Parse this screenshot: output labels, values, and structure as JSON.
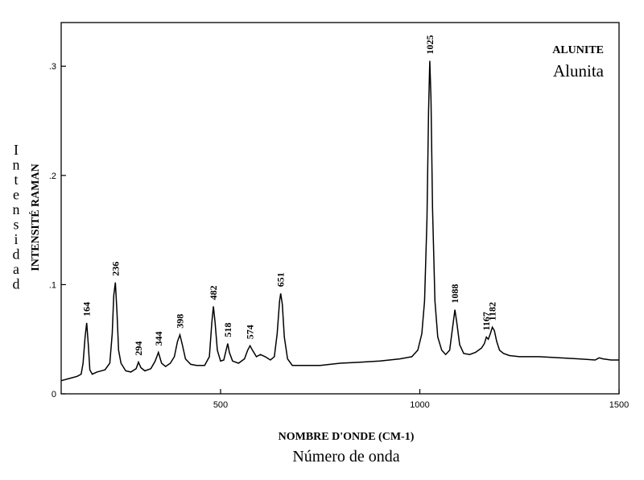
{
  "chart_data": {
    "type": "line",
    "title": "ALUNITE",
    "subtitle": "Alunita",
    "xlabel": "NOMBRE D'ONDE (CM-1)",
    "xlabel_alt": "Número de onda",
    "ylabel": "INTENSITÉ RAMAN",
    "ylabel_alt": "Intensidad",
    "xlim": [
      100,
      1500
    ],
    "ylim": [
      0,
      0.34
    ],
    "x_ticks": [
      500,
      1000,
      1500
    ],
    "y_ticks": [
      {
        "value": 0,
        "label": "0"
      },
      {
        "value": 0.1,
        "label": ".1"
      },
      {
        "value": 0.2,
        "label": ".2"
      },
      {
        "value": 0.3,
        "label": ".3"
      }
    ],
    "grid": false,
    "peaks": [
      {
        "label": "164",
        "x": 164,
        "y": 0.065
      },
      {
        "label": "236",
        "x": 236,
        "y": 0.102
      },
      {
        "label": "294",
        "x": 294,
        "y": 0.029
      },
      {
        "label": "344",
        "x": 344,
        "y": 0.038
      },
      {
        "label": "398",
        "x": 398,
        "y": 0.054
      },
      {
        "label": "482",
        "x": 482,
        "y": 0.08
      },
      {
        "label": "518",
        "x": 518,
        "y": 0.046
      },
      {
        "label": "574",
        "x": 574,
        "y": 0.044
      },
      {
        "label": "651",
        "x": 651,
        "y": 0.092
      },
      {
        "label": "1025",
        "x": 1025,
        "y": 0.305
      },
      {
        "label": "1088",
        "x": 1088,
        "y": 0.077
      },
      {
        "label": "1167",
        "x": 1167,
        "y": 0.052
      },
      {
        "label": "1182",
        "x": 1182,
        "y": 0.061
      }
    ],
    "series": [
      {
        "x": [
          100,
          120,
          140,
          150,
          155,
          160,
          164,
          168,
          172,
          178,
          190,
          210,
          222,
          228,
          232,
          236,
          240,
          244,
          250,
          262,
          275,
          288,
          294,
          300,
          310,
          325,
          336,
          344,
          352,
          362,
          374,
          384,
          392,
          398,
          404,
          412,
          425,
          440,
          460,
          472,
          478,
          482,
          486,
          492,
          500,
          508,
          514,
          518,
          522,
          530,
          545,
          560,
          568,
          574,
          580,
          590,
          600,
          612,
          625,
          635,
          642,
          648,
          651,
          655,
          660,
          668,
          680,
          700,
          750,
          800,
          850,
          900,
          950,
          980,
          995,
          1005,
          1012,
          1018,
          1022,
          1025,
          1028,
          1032,
          1038,
          1045,
          1055,
          1065,
          1075,
          1082,
          1088,
          1093,
          1100,
          1110,
          1125,
          1140,
          1155,
          1162,
          1167,
          1172,
          1177,
          1182,
          1187,
          1193,
          1200,
          1210,
          1225,
          1250,
          1300,
          1350,
          1400,
          1440,
          1450,
          1460,
          1480,
          1500
        ],
        "y": [
          0.012,
          0.014,
          0.016,
          0.018,
          0.028,
          0.052,
          0.065,
          0.045,
          0.022,
          0.018,
          0.02,
          0.022,
          0.028,
          0.055,
          0.09,
          0.102,
          0.075,
          0.04,
          0.028,
          0.021,
          0.02,
          0.023,
          0.029,
          0.024,
          0.021,
          0.023,
          0.03,
          0.038,
          0.028,
          0.025,
          0.028,
          0.034,
          0.048,
          0.054,
          0.045,
          0.032,
          0.027,
          0.026,
          0.026,
          0.034,
          0.065,
          0.08,
          0.066,
          0.04,
          0.03,
          0.031,
          0.04,
          0.046,
          0.038,
          0.03,
          0.028,
          0.032,
          0.04,
          0.044,
          0.04,
          0.034,
          0.036,
          0.034,
          0.031,
          0.034,
          0.055,
          0.085,
          0.092,
          0.082,
          0.052,
          0.032,
          0.026,
          0.026,
          0.026,
          0.028,
          0.029,
          0.03,
          0.032,
          0.034,
          0.04,
          0.055,
          0.085,
          0.16,
          0.26,
          0.305,
          0.27,
          0.17,
          0.085,
          0.052,
          0.04,
          0.036,
          0.04,
          0.06,
          0.077,
          0.065,
          0.045,
          0.037,
          0.036,
          0.038,
          0.042,
          0.046,
          0.052,
          0.05,
          0.055,
          0.061,
          0.058,
          0.048,
          0.04,
          0.037,
          0.035,
          0.034,
          0.034,
          0.033,
          0.032,
          0.031,
          0.033,
          0.032,
          0.031,
          0.031
        ]
      }
    ]
  }
}
